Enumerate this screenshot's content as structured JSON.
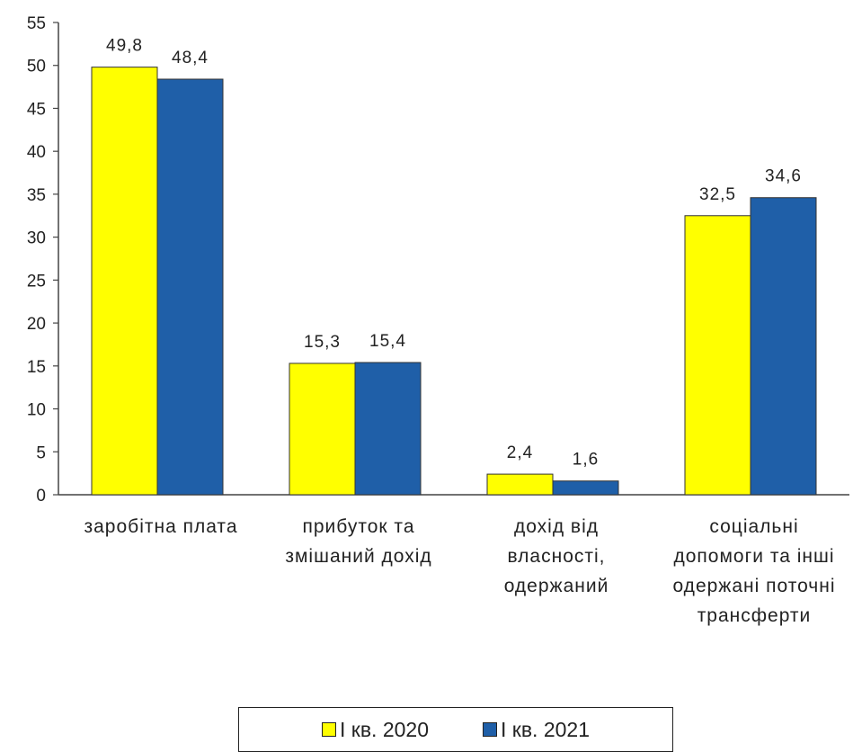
{
  "chart_data": {
    "type": "bar",
    "categories": [
      [
        "заробітна плата"
      ],
      [
        "прибуток та",
        "змішаний дохід"
      ],
      [
        "дохід від",
        "власності,",
        "одержаний"
      ],
      [
        "соціальні",
        "допомоги та інші",
        "одержані поточні",
        "трансферти"
      ]
    ],
    "series": [
      {
        "name": "І кв. 2020",
        "color": "#ffff00",
        "values": [
          49.8,
          15.3,
          2.4,
          32.5
        ],
        "labels": [
          "49,8",
          "15,3",
          "2,4",
          "32,5"
        ]
      },
      {
        "name": "І кв. 2021",
        "color": "#1f5fa8",
        "values": [
          48.4,
          15.4,
          1.6,
          34.6
        ],
        "labels": [
          "48,4",
          "15,4",
          "1,6",
          "34,6"
        ]
      }
    ],
    "ylim": [
      0,
      55
    ],
    "yticks": [
      0,
      5,
      10,
      15,
      20,
      25,
      30,
      35,
      40,
      45,
      50,
      55
    ],
    "grid": false,
    "legend_position": "bottom"
  }
}
